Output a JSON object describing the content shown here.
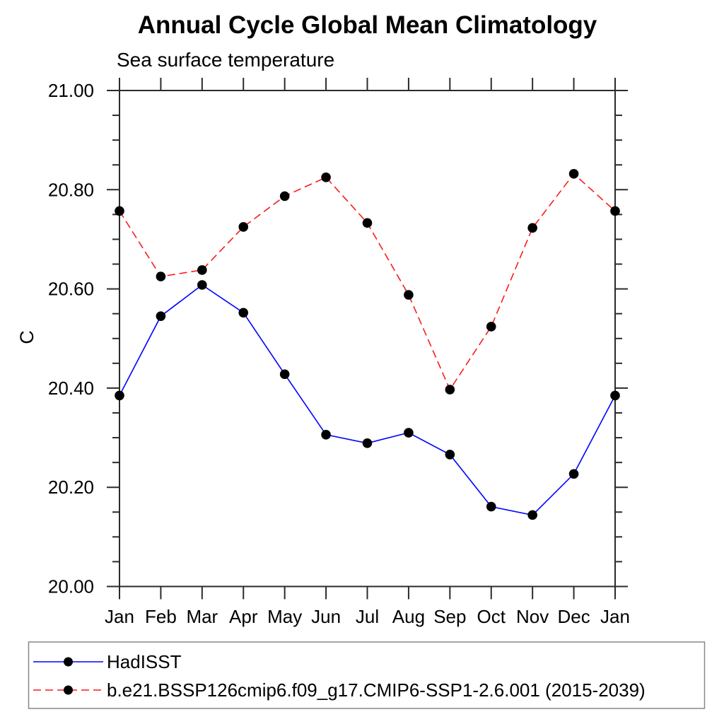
{
  "chart_data": {
    "type": "line",
    "title": "Annual Cycle Global Mean Climatology",
    "subtitle": "Sea surface temperature",
    "ylabel": "C",
    "xlabel": "",
    "categories": [
      "Jan",
      "Feb",
      "Mar",
      "Apr",
      "May",
      "Jun",
      "Jul",
      "Aug",
      "Sep",
      "Oct",
      "Nov",
      "Dec",
      "Jan"
    ],
    "ylim": [
      20.0,
      21.0
    ],
    "y_tick_labels": [
      "20.00",
      "20.20",
      "20.40",
      "20.60",
      "20.80",
      "21.00"
    ],
    "y_major_step": 0.2,
    "y_minor_step": 0.05,
    "grid": false,
    "ticks": "outward-all-four-sides",
    "marker": "filled-circle",
    "marker_color": "#000000",
    "axis_color": "#2b2b2b",
    "legend_position": "bottom-left-boxed",
    "series": [
      {
        "name": "HadISST",
        "color": "#0000ff",
        "line_style": "solid",
        "values": [
          20.385,
          20.545,
          20.608,
          20.552,
          20.428,
          20.306,
          20.289,
          20.31,
          20.266,
          20.161,
          20.144,
          20.227,
          20.385
        ]
      },
      {
        "name": "b.e21.BSSP126cmip6.f09_g17.CMIP6-SSP1-2.6.001 (2015-2039)",
        "color": "#fa1a1a",
        "line_style": "dashed",
        "values": [
          20.757,
          20.625,
          20.638,
          20.725,
          20.787,
          20.825,
          20.733,
          20.588,
          20.397,
          20.524,
          20.723,
          20.832,
          20.757
        ]
      }
    ]
  }
}
